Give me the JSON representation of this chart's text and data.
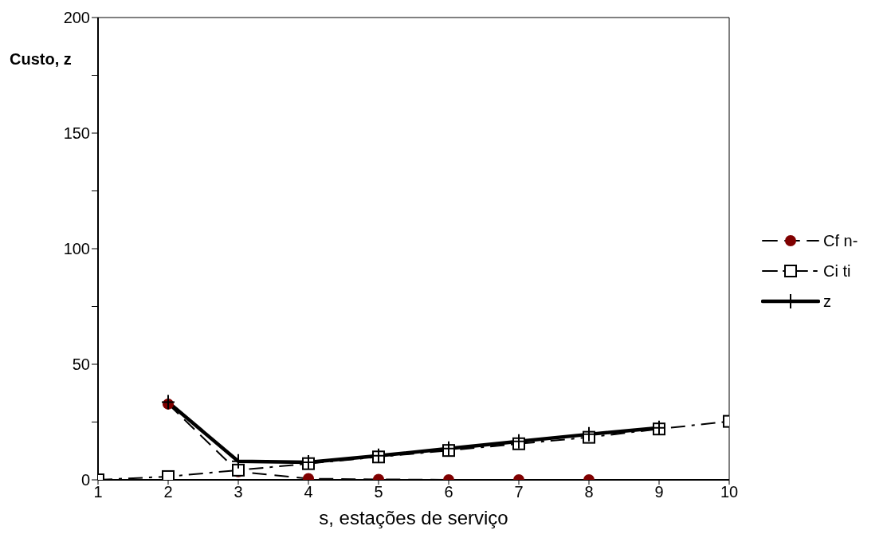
{
  "chart_data": {
    "type": "line",
    "xlabel": "s, estações de serviço",
    "ylabel": "Custo, z",
    "x": [
      1,
      2,
      3,
      4,
      5,
      6,
      7,
      8,
      9,
      10
    ],
    "xlim": [
      1,
      10
    ],
    "xticks": [
      1,
      2,
      3,
      4,
      5,
      6,
      7,
      8,
      9,
      10
    ],
    "ylim": [
      0,
      200
    ],
    "yticks": [
      0,
      {
        "value": 25,
        "label": null
      },
      50,
      {
        "value": 75,
        "label": null
      },
      100,
      {
        "value": 125,
        "label": null
      },
      150,
      {
        "value": 175,
        "label": null
      },
      200
    ],
    "grid": false,
    "legend": "right",
    "series": [
      {
        "name": "Cf n-",
        "color": "#800000",
        "marker": "circle",
        "line_style": "dashed",
        "values": [
          null,
          32.8,
          3.5,
          0.5,
          0.2,
          0,
          0,
          0,
          null,
          null
        ]
      },
      {
        "name": "Ci ti",
        "color": "#000000",
        "marker": "square",
        "line_style": "dashed",
        "values": [
          0,
          1.4,
          4.2,
          7,
          9.9,
          12.7,
          15.6,
          18.4,
          22,
          25.3
        ]
      },
      {
        "name": "z",
        "color": "#000000",
        "marker": "cross",
        "line_style": "solid",
        "values": [
          null,
          33.6,
          8,
          7.6,
          10.4,
          13.5,
          16.6,
          19.7,
          22.5,
          null
        ]
      }
    ]
  }
}
